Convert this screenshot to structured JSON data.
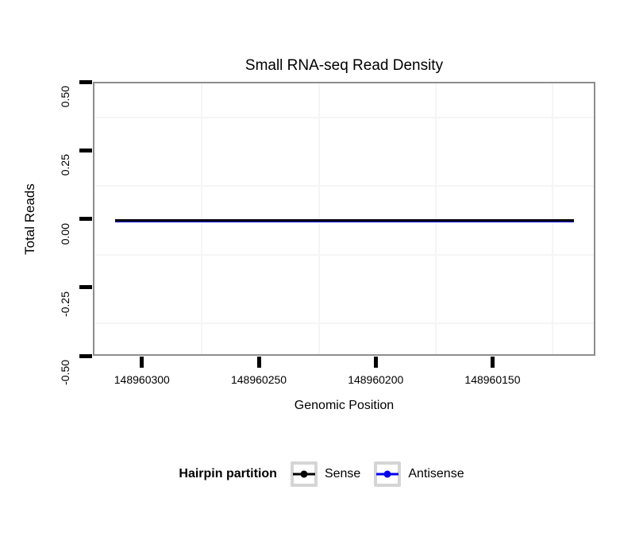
{
  "chart_data": {
    "type": "line",
    "title": "Small RNA-seq Read Density",
    "xlabel": "Genomic Position",
    "ylabel": "Total Reads",
    "x_axis": {
      "reversed": true,
      "ticks": [
        148960300,
        148960250,
        148960200,
        148960150
      ],
      "tick_labels": [
        "148960300",
        "148960250",
        "148960200",
        "148960150"
      ],
      "range_left_to_right": [
        148960321,
        148960106
      ],
      "major_step": 50
    },
    "y_axis": {
      "ticks": [
        0.5,
        0.25,
        0,
        -0.25,
        -0.5
      ],
      "tick_labels": [
        "0.50",
        "0.25",
        "0.00",
        "-0.25",
        "-0.50"
      ],
      "lim": [
        -0.5,
        0.5
      ],
      "minor_positions": [
        0.375,
        0.125,
        -0.125,
        -0.375
      ]
    },
    "series": [
      {
        "name": "Sense",
        "color": "#000000",
        "y_value": 0,
        "x_start": 148960312,
        "x_end": 148960116
      },
      {
        "name": "Antisense",
        "color": "#0000EE",
        "y_value": 0,
        "x_start": 148960312,
        "x_end": 148960116
      }
    ],
    "legend": {
      "title": "Hairpin partition",
      "position": "bottom"
    },
    "grid": {
      "minor_color": "#f5f5f5",
      "major_visible": false
    }
  },
  "colors": {
    "panel_border": "#8d8d8d",
    "tick": "#000000",
    "text": "#000000",
    "legend_key_border": "#d5d5d5",
    "background": "#ffffff"
  }
}
